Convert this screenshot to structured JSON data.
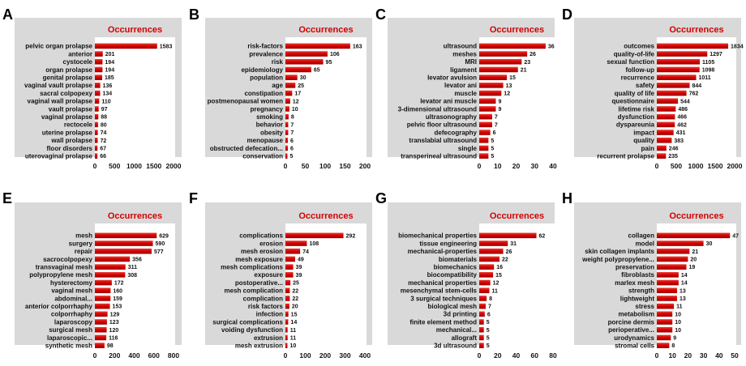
{
  "chart_data": [
    {
      "panel": "A",
      "type": "bar",
      "orientation": "horizontal",
      "title": "Occurrences",
      "categories": [
        "pelvic organ prolapse",
        "anterior",
        "cystocele",
        "organ prolapse",
        "genital prolapse",
        "vaginal vault prolapse",
        "sacral colpopexy",
        "vaginal wall prolapse",
        "vault prolapse",
        "vaginal prolapse",
        "rectocele",
        "uterine prolapse",
        "wall prolapse",
        "floor disorders",
        "uterovaginal prolapse"
      ],
      "values": [
        1583,
        201,
        194,
        194,
        185,
        136,
        134,
        110,
        97,
        88,
        80,
        74,
        72,
        67,
        66
      ],
      "xlim": [
        0,
        2000
      ],
      "xticks": [
        0,
        500,
        1000,
        1500,
        2000
      ],
      "bar_color": "#d40000",
      "panel_color": "#d9d9d9"
    },
    {
      "panel": "B",
      "type": "bar",
      "orientation": "horizontal",
      "title": "Occurrences",
      "categories": [
        "risk-factors",
        "prevalence",
        "risk",
        "epidemiology",
        "population",
        "age",
        "constipation",
        "postmenopausal women",
        "pregnancy",
        "smoking",
        "behavior",
        "obesity",
        "menopause",
        "obstructed defecation...",
        "conservation"
      ],
      "values": [
        163,
        106,
        95,
        65,
        30,
        25,
        17,
        12,
        10,
        8,
        7,
        7,
        6,
        6,
        5
      ],
      "xlim": [
        0,
        200
      ],
      "xticks": [
        0,
        50,
        100,
        150,
        200
      ],
      "bar_color": "#d40000",
      "panel_color": "#d9d9d9"
    },
    {
      "panel": "C",
      "type": "bar",
      "orientation": "horizontal",
      "title": "Occurrences",
      "categories": [
        "ultrasound",
        "meshes",
        "MRI",
        "ligament",
        "levator avulsion",
        "levator ani",
        "muscle",
        "levator ani muscle",
        "3-dimensional ultrasound",
        "ultrasonography",
        "pelvic floor ultrasound",
        "defecography",
        "translabial ultrasound",
        "single",
        "transperineal ultrasound"
      ],
      "values": [
        36,
        26,
        23,
        21,
        15,
        13,
        12,
        9,
        9,
        7,
        7,
        6,
        5,
        5,
        5
      ],
      "xlim": [
        0,
        40
      ],
      "xticks": [
        0,
        10,
        20,
        30,
        40
      ],
      "bar_color": "#d40000",
      "panel_color": "#d9d9d9"
    },
    {
      "panel": "D",
      "type": "bar",
      "orientation": "horizontal",
      "title": "Occurrences",
      "categories": [
        "outcomes",
        "quality-of-life",
        "sexual function",
        "follow-up",
        "recurrence",
        "safety",
        "quality of life",
        "questionnaire",
        "lifetime risk",
        "dysfunction",
        "dyspareunia",
        "impact",
        "quality",
        "pain",
        "recurrent prolapse"
      ],
      "values": [
        1834,
        1297,
        1105,
        1098,
        1011,
        844,
        762,
        544,
        486,
        466,
        462,
        431,
        383,
        246,
        235
      ],
      "xlim": [
        0,
        2000
      ],
      "xticks": [
        0,
        500,
        1000,
        1500,
        2000
      ],
      "bar_color": "#d40000",
      "panel_color": "#d9d9d9"
    },
    {
      "panel": "E",
      "type": "bar",
      "orientation": "horizontal",
      "title": "Occurrences",
      "categories": [
        "mesh",
        "surgery",
        "repair",
        "sacrocolpopexy",
        "transvaginal mesh",
        "polypropylene mesh",
        "hysterectomy",
        "vaginal mesh",
        "abdominal...",
        "anterior colporrhaphy",
        "colporrhaphy",
        "laparoscopy",
        "surgical mesh",
        "laparoscopic...",
        "synthetic mesh"
      ],
      "values": [
        629,
        590,
        577,
        356,
        311,
        308,
        172,
        160,
        159,
        153,
        129,
        123,
        120,
        116,
        98
      ],
      "xlim": [
        0,
        800
      ],
      "xticks": [
        0,
        200,
        400,
        600,
        800
      ],
      "bar_color": "#d40000",
      "panel_color": "#d9d9d9"
    },
    {
      "panel": "F",
      "type": "bar",
      "orientation": "horizontal",
      "title": "Occurrences",
      "categories": [
        "complications",
        "erosion",
        "mesh erosion",
        "mesh exposure",
        "mesh complications",
        "exposure",
        "postoperative...",
        "mesh complication",
        "complication",
        "risk factors",
        "infection",
        "surgical complications",
        "voiding dysfunction",
        "extrusion",
        "mesh extrusion"
      ],
      "values": [
        292,
        108,
        74,
        49,
        39,
        39,
        25,
        22,
        22,
        20,
        15,
        14,
        11,
        11,
        10
      ],
      "xlim": [
        0,
        400
      ],
      "xticks": [
        0,
        100,
        200,
        300,
        400
      ],
      "bar_color": "#d40000",
      "panel_color": "#d9d9d9"
    },
    {
      "panel": "G",
      "type": "bar",
      "orientation": "horizontal",
      "title": "Occurrences",
      "categories": [
        "biomechanical properties",
        "tissue engineering",
        "mechanical-properties",
        "biomaterials",
        "biomechanics",
        "biocompatibility",
        "mechanical properties",
        "mesenchymal stem-cells",
        "3 surgical techniques",
        "biological mesh",
        "3d printing",
        "finite element method",
        "mechanical...",
        "allograft",
        "3d ultrasound"
      ],
      "values": [
        62,
        31,
        26,
        22,
        16,
        15,
        12,
        11,
        8,
        7,
        6,
        5,
        5,
        5,
        5
      ],
      "xlim": [
        0,
        80
      ],
      "xticks": [
        0,
        20,
        40,
        60,
        80
      ],
      "bar_color": "#d40000",
      "panel_color": "#d9d9d9"
    },
    {
      "panel": "H",
      "type": "bar",
      "orientation": "horizontal",
      "title": "Occurrences",
      "categories": [
        "collagen",
        "model",
        "skin collagen implants",
        "weight polypropylene...",
        "preservation",
        "fibroblasts",
        "marlex mesh",
        "strength",
        "lightweight",
        "stress",
        "metabolism",
        "porcine dermis",
        "perioperative...",
        "urodynamics",
        "stromal cells"
      ],
      "values": [
        47,
        30,
        21,
        20,
        19,
        14,
        14,
        13,
        13,
        11,
        10,
        10,
        10,
        9,
        8
      ],
      "xlim": [
        0,
        50
      ],
      "xticks": [
        0,
        10,
        20,
        30,
        40,
        50
      ],
      "bar_color": "#d40000",
      "panel_color": "#d9d9d9"
    }
  ]
}
